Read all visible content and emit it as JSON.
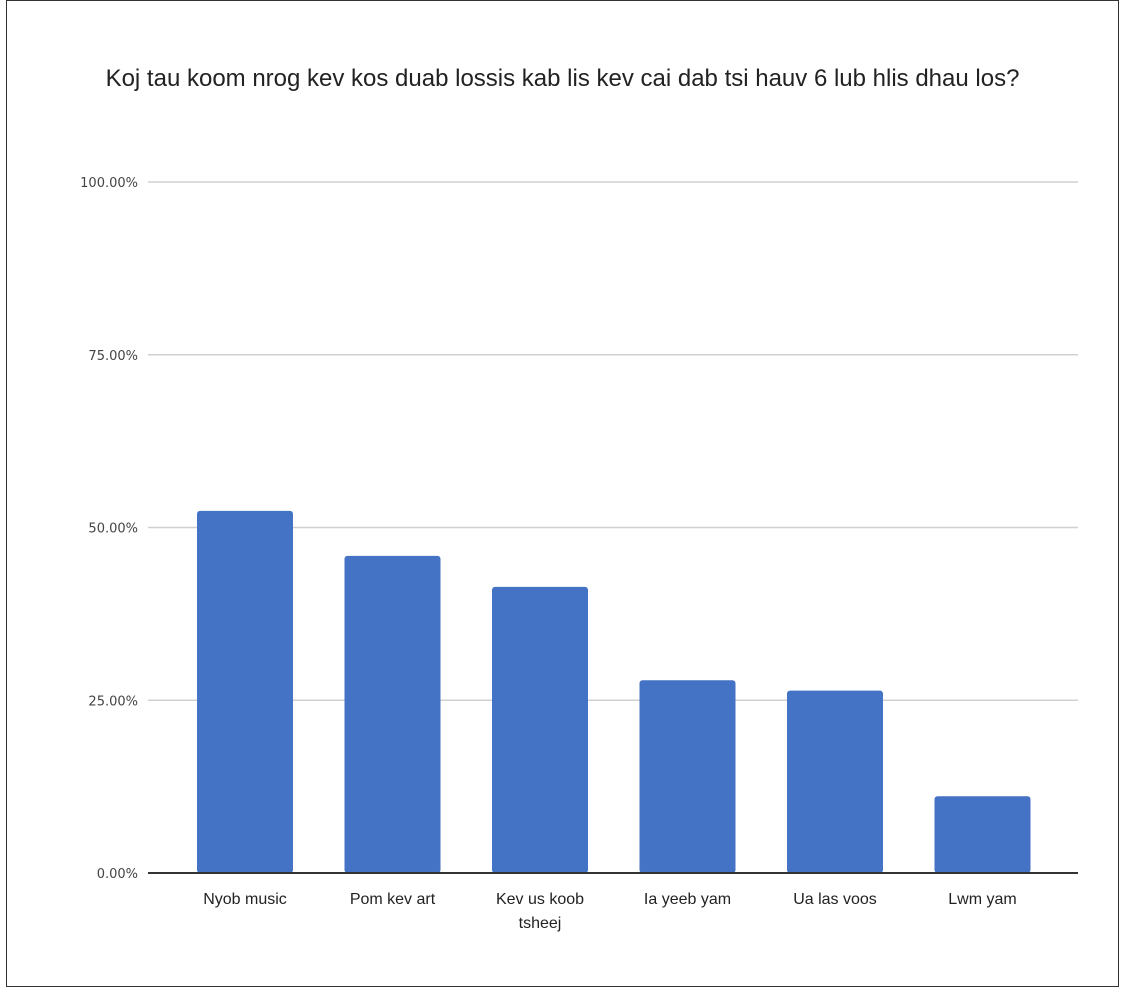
{
  "chart_data": {
    "type": "bar",
    "title": "Koj tau koom nrog kev kos duab lossis kab lis kev cai dab tsi hauv 6 lub hlis dhau los?",
    "categories": [
      "Nyob music",
      "Pom kev art",
      "Kev us koob tsheej",
      "Ia yeeb yam",
      "Ua las voos",
      "Lwm yam"
    ],
    "category_lines": [
      [
        "Nyob music"
      ],
      [
        "Pom kev art"
      ],
      [
        "Kev us koob",
        "tsheej"
      ],
      [
        "Ia yeeb yam"
      ],
      [
        "Ua las voos"
      ],
      [
        "Lwm yam"
      ]
    ],
    "values": [
      52.4,
      45.9,
      41.4,
      27.9,
      26.4,
      11.1
    ],
    "ylim": [
      0,
      100
    ],
    "yticks": [
      0,
      25,
      50,
      75,
      100
    ],
    "ytick_labels": [
      "0.00%",
      "25.00%",
      "50.00%",
      "75.00%",
      "100.00%"
    ],
    "xlabel": "",
    "ylabel": "",
    "grid": true,
    "legend": "none",
    "bar_color": "#4472c4"
  }
}
